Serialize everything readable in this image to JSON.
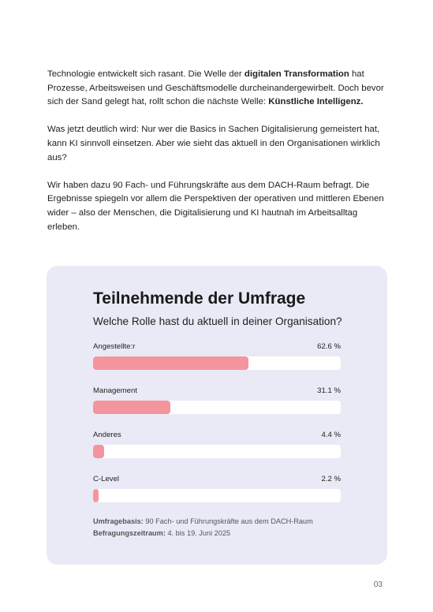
{
  "paragraphs": [
    [
      {
        "text": "Technologie entwickelt sich rasant. Die Welle der "
      },
      {
        "text": "digitalen Transformation",
        "bold": true
      },
      {
        "text": " hat Prozesse, Arbeitsweisen und Geschäftsmodelle durcheinandergewirbelt. Doch bevor sich der Sand gelegt hat, rollt schon die nächste Welle: "
      },
      {
        "text": "Künstliche Intelligenz.",
        "bold": true
      }
    ],
    [
      {
        "text": "Was jetzt deutlich wird: Nur wer die Basics in Sachen Digitalisierung gemeistert hat, kann KI sinnvoll einsetzen. Aber wie sieht das aktuell in den Organisationen wirklich aus?"
      }
    ],
    [
      {
        "text": "Wir haben dazu 90 Fach- und Führungskräfte aus dem DACH-Raum befragt. Die Ergebnisse spiegeln vor allem die Perspektiven der operativen und mittleren Ebenen wider – also der Menschen, die Digitalisierung und KI hautnah im Arbeitsalltag erleben."
      }
    ]
  ],
  "chart_data": {
    "type": "bar",
    "orientation": "horizontal",
    "title": "Teilnehmende der Umfrage",
    "subtitle": "Welche Rolle hast du aktuell in deiner Organisation?",
    "categories": [
      "Angestellte:r",
      "Management",
      "Anderes",
      "C-Level"
    ],
    "values": [
      62.6,
      31.1,
      4.4,
      2.2
    ],
    "value_labels": [
      "62.6 %",
      "31.1 %",
      "4.4 %",
      "2.2 %"
    ],
    "xlim": [
      0,
      100
    ],
    "color": "#f4959e",
    "notes": [
      {
        "label": "Umfragebasis:",
        "text": " 90 Fach- und Führungskräfte aus dem DACH-Raum"
      },
      {
        "label": "Befragungszeitraum:",
        "text": " 4. bis 19. Juni 2025"
      }
    ]
  },
  "page_number": "03"
}
